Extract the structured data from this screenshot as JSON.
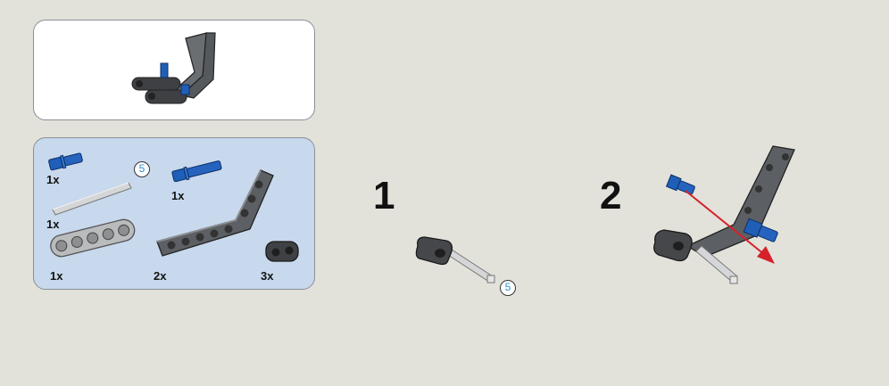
{
  "parts_list": {
    "items": [
      {
        "name": "blue-pin",
        "qty": "1x"
      },
      {
        "name": "axle-5",
        "qty": "1x",
        "length": "5"
      },
      {
        "name": "blue-long-pin",
        "qty": "1x"
      },
      {
        "name": "beam-5",
        "qty": "1x"
      },
      {
        "name": "angled-beam",
        "qty": "2x"
      },
      {
        "name": "connector-block",
        "qty": "3x"
      }
    ]
  },
  "steps": [
    {
      "number": "1",
      "axle_length": "5"
    },
    {
      "number": "2"
    }
  ],
  "colors": {
    "dark_gray": "#4d4f52",
    "light_gray": "#a7a9ab",
    "blue": "#1f5fb8",
    "arrow_red": "#d6212a",
    "parts_bg": "#c8d9ee"
  }
}
